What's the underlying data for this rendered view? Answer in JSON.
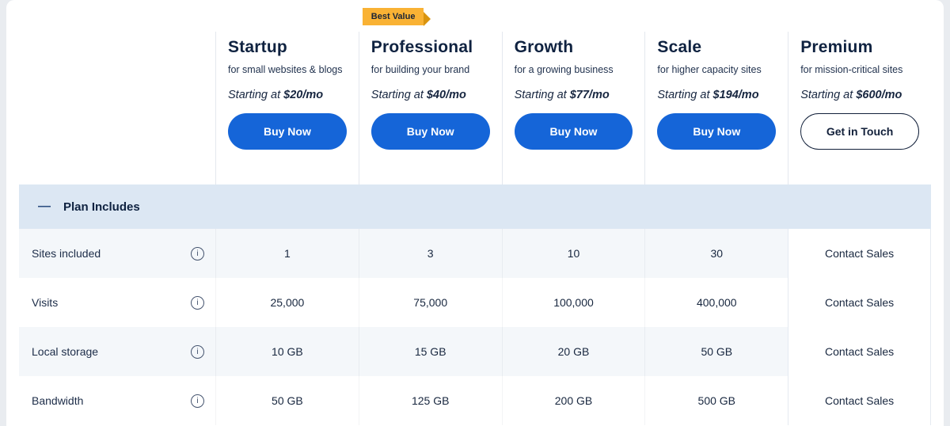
{
  "badge": {
    "label": "Best Value"
  },
  "plans": [
    {
      "name": "Startup",
      "tagline": "for small websites & blogs",
      "price_prefix": "Starting at ",
      "price": "$20/mo",
      "cta": "Buy Now"
    },
    {
      "name": "Professional",
      "tagline": "for building your brand",
      "price_prefix": "Starting at ",
      "price": "$40/mo",
      "cta": "Buy Now"
    },
    {
      "name": "Growth",
      "tagline": "for a growing business",
      "price_prefix": "Starting at ",
      "price": "$77/mo",
      "cta": "Buy Now"
    },
    {
      "name": "Scale",
      "tagline": "for higher capacity sites",
      "price_prefix": "Starting at ",
      "price": "$194/mo",
      "cta": "Buy Now"
    },
    {
      "name": "Premium",
      "tagline": "for mission-critical sites",
      "price_prefix": "Starting at ",
      "price": "$600/mo",
      "cta": "Get in Touch"
    }
  ],
  "section_header": {
    "label": "Plan Includes",
    "collapse_icon": "—"
  },
  "features": [
    {
      "label": "Sites included",
      "values": [
        "1",
        "3",
        "10",
        "30",
        "Contact Sales"
      ]
    },
    {
      "label": "Visits",
      "values": [
        "25,000",
        "75,000",
        "100,000",
        "400,000",
        "Contact Sales"
      ]
    },
    {
      "label": "Local storage",
      "values": [
        "10 GB",
        "15 GB",
        "20 GB",
        "50 GB",
        "Contact Sales"
      ]
    },
    {
      "label": "Bandwidth",
      "values": [
        "50 GB",
        "125 GB",
        "200 GB",
        "500 GB",
        "Contact Sales"
      ]
    }
  ],
  "colors": {
    "accent_blue": "#1565d8",
    "badge_gold": "#f9b234",
    "section_bar_bg": "#dce7f3",
    "row_alt_bg": "#f4f7fa",
    "heading_navy": "#0f2240"
  }
}
